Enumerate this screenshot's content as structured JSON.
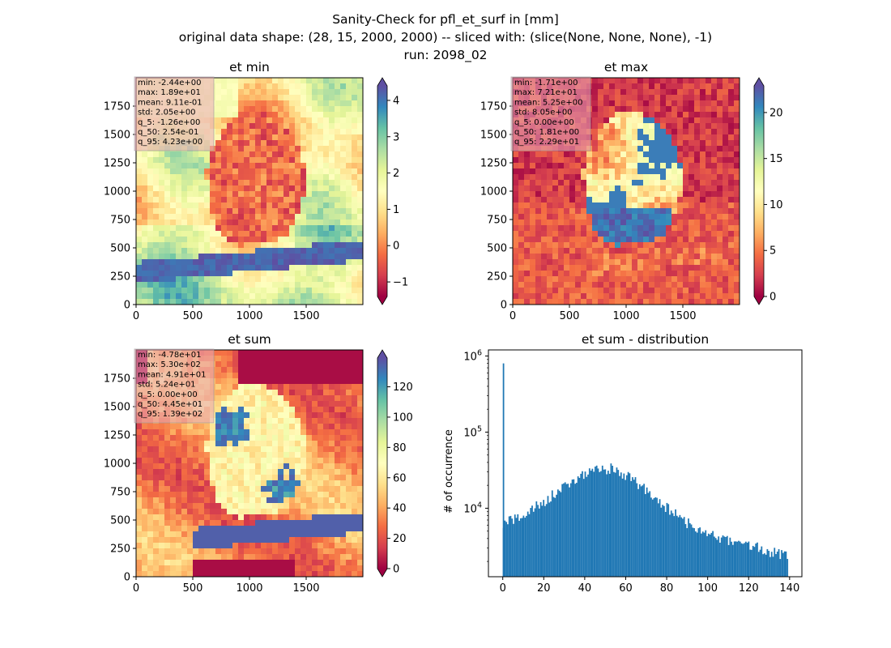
{
  "figure": {
    "title_lines": [
      "Sanity-Check for pfl_et_surf in [mm]",
      "original data shape: (28, 15, 2000, 2000) -- sliced with: (slice(None, None, None), -1)",
      "run: 2098_02"
    ]
  },
  "colors": {
    "spectral": [
      "#9e0142",
      "#d53e4f",
      "#f46d43",
      "#fdae61",
      "#fee08b",
      "#ffffbf",
      "#e6f598",
      "#abdda4",
      "#66c2a5",
      "#3288bd",
      "#5e4fa2"
    ],
    "hist_bar": "#1f77b4",
    "stats_box": "#e8a7b8"
  },
  "chart_data": [
    {
      "type": "heatmap",
      "title": "et min",
      "xlim": [
        0,
        2000
      ],
      "ylim": [
        0,
        2000
      ],
      "xticks": [
        "0",
        "500",
        "1000",
        "1500"
      ],
      "yticks": [
        "0",
        "250",
        "500",
        "750",
        "1000",
        "1250",
        "1500",
        "1750"
      ],
      "color_range": [
        -1.4,
        4.4
      ],
      "colorbar_ticks": [
        "−1",
        "0",
        "1",
        "2",
        "3",
        "4"
      ],
      "colorbar_tick_values": [
        -1,
        0,
        1,
        2,
        3,
        4
      ],
      "stats": [
        "min: -2.44e+00",
        "max: 1.89e+01",
        "mean: 9.11e-01",
        "std: 2.05e+00",
        "q_5: -1.26e+00",
        "q_50: 2.54e-01",
        "q_95: 4.23e+00"
      ]
    },
    {
      "type": "heatmap",
      "title": "et max",
      "xlim": [
        0,
        2000
      ],
      "ylim": [
        0,
        2000
      ],
      "xticks": [
        "0",
        "500",
        "1000",
        "1500"
      ],
      "yticks": [
        "0",
        "250",
        "500",
        "750",
        "1000",
        "1250",
        "1500",
        "1750"
      ],
      "color_range": [
        0,
        22.9
      ],
      "colorbar_ticks": [
        "0",
        "5",
        "10",
        "15",
        "20"
      ],
      "colorbar_tick_values": [
        0,
        5,
        10,
        15,
        20
      ],
      "stats": [
        "min: -1.71e+00",
        "max: 7.21e+01",
        "mean: 5.25e+00",
        "std: 8.05e+00",
        "q_5: 0.00e+00",
        "q_50: 1.81e+00",
        "q_95: 2.29e+01"
      ]
    },
    {
      "type": "heatmap",
      "title": "et sum",
      "xlim": [
        0,
        2000
      ],
      "ylim": [
        0,
        2000
      ],
      "xticks": [
        "0",
        "500",
        "1000",
        "1500"
      ],
      "yticks": [
        "0",
        "250",
        "500",
        "750",
        "1000",
        "1250",
        "1500",
        "1750"
      ],
      "color_range": [
        0,
        139
      ],
      "colorbar_ticks": [
        "0",
        "20",
        "40",
        "60",
        "80",
        "100",
        "120"
      ],
      "colorbar_tick_values": [
        0,
        20,
        40,
        60,
        80,
        100,
        120
      ],
      "stats": [
        "min: -4.78e+01",
        "max: 5.30e+02",
        "mean: 4.91e+01",
        "std: 5.24e+01",
        "q_5: 0.00e+00",
        "q_50: 4.45e+01",
        "q_95: 1.39e+02"
      ]
    },
    {
      "type": "bar",
      "title": "et sum - distribution",
      "xlabel": "",
      "ylabel": "# of occurrence",
      "xlim": [
        -7,
        146
      ],
      "ylog": true,
      "ylim_log10": [
        3.1,
        6.08
      ],
      "xticks": [
        0,
        20,
        40,
        60,
        80,
        100,
        120,
        140
      ],
      "yticks": [
        {
          "value": 4,
          "mantissa": "10",
          "exp": "4"
        },
        {
          "value": 5,
          "mantissa": "10",
          "exp": "5"
        },
        {
          "value": 6,
          "mantissa": "10",
          "exp": "6"
        }
      ],
      "bin_start": 0,
      "bin_width": 0.7,
      "spike": {
        "x": 0,
        "value": 800000
      },
      "curve": [
        [
          0,
          6000
        ],
        [
          10,
          8000
        ],
        [
          20,
          12000
        ],
        [
          30,
          19000
        ],
        [
          40,
          28000
        ],
        [
          48,
          34000
        ],
        [
          55,
          32000
        ],
        [
          60,
          27000
        ],
        [
          70,
          17000
        ],
        [
          80,
          10000
        ],
        [
          90,
          6500
        ],
        [
          100,
          4500
        ],
        [
          110,
          3800
        ],
        [
          120,
          3200
        ],
        [
          130,
          2700
        ],
        [
          139,
          2300
        ]
      ]
    }
  ]
}
